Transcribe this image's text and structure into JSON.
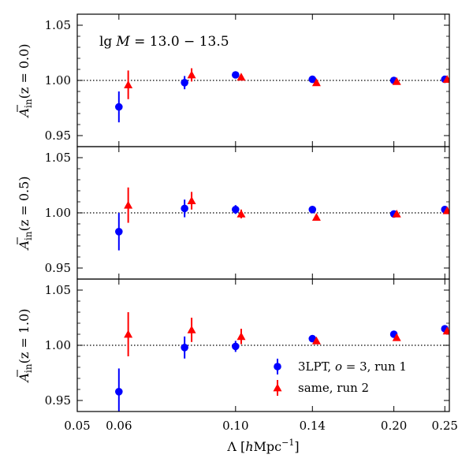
{
  "chart_data": {
    "type": "scatter",
    "layout": "three vertically stacked panels sharing the x axis",
    "xlabel_parts": {
      "symbol": "Λ",
      "unit_open": "[",
      "h": "h",
      "unit": "Mpc",
      "exp": "−1",
      "unit_close": "]"
    },
    "x_ticks": [
      0.05,
      0.06,
      0.1,
      0.14,
      0.2,
      0.25
    ],
    "x_tick_labels": [
      "0.05",
      "0.06",
      "0.10",
      "0.14",
      "0.20",
      "0.25"
    ],
    "xlim": [
      0.05,
      0.255
    ],
    "y_ticks": [
      0.95,
      1.0,
      1.05
    ],
    "y_tick_labels": [
      "0.95",
      "1.00",
      "1.05"
    ],
    "ylim": [
      0.94,
      1.06
    ],
    "reference_line": 1.0,
    "annotation_parts": {
      "lg": "lg",
      "M": "M",
      "range": " = 13.0 − 13.5"
    },
    "legend": {
      "location": "lower-right of bottom panel",
      "entries": [
        {
          "name": "3LPT, o = 3, run 1",
          "label_pre": "3LPT, ",
          "label_var": "o",
          "label_post": " = 3, run 1",
          "marker": "circle",
          "color": "#0000ff"
        },
        {
          "name": "same, run 2",
          "label_pre": "same, run 2",
          "label_var": "",
          "label_post": "",
          "marker": "triangle",
          "color": "#ff0000"
        }
      ]
    },
    "panels": [
      {
        "ylabel": {
          "hat": "A",
          "sub": "in",
          "args": "(z = 0.0)"
        },
        "series": [
          {
            "name": "3LPT, o = 3, run 1",
            "marker": "circle",
            "color": "#0000ff",
            "x": [
              0.06,
              0.08,
              0.1,
              0.14,
              0.2,
              0.25
            ],
            "y": [
              0.976,
              0.998,
              1.005,
              1.001,
              1.0,
              1.001
            ],
            "err": [
              0.014,
              0.006,
              0.003,
              0.002,
              0.0015,
              0.0015
            ]
          },
          {
            "name": "same, run 2",
            "marker": "triangle",
            "color": "#ff0000",
            "x": [
              0.0625,
              0.0825,
              0.1025,
              0.1425,
              0.2025,
              0.2525
            ],
            "y": [
              0.996,
              1.005,
              1.003,
              0.998,
              0.999,
              1.001
            ],
            "err": [
              0.013,
              0.006,
              0.002,
              0.001,
              0.001,
              0.001
            ]
          }
        ]
      },
      {
        "ylabel": {
          "hat": "A",
          "sub": "in",
          "args": "(z = 0.5)"
        },
        "series": [
          {
            "name": "3LPT, o = 3, run 1",
            "marker": "circle",
            "color": "#0000ff",
            "x": [
              0.06,
              0.08,
              0.1,
              0.14,
              0.2,
              0.25
            ],
            "y": [
              0.983,
              1.004,
              1.003,
              1.003,
              0.999,
              1.003
            ],
            "err": [
              0.017,
              0.008,
              0.004,
              0.002,
              0.0015,
              0.002
            ]
          },
          {
            "name": "same, run 2",
            "marker": "triangle",
            "color": "#ff0000",
            "x": [
              0.0625,
              0.0825,
              0.1025,
              0.1425,
              0.2025,
              0.2525
            ],
            "y": [
              1.007,
              1.011,
              0.999,
              0.996,
              0.999,
              1.002
            ],
            "err": [
              0.016,
              0.008,
              0.004,
              0.002,
              0.001,
              0.001
            ]
          }
        ]
      },
      {
        "ylabel": {
          "hat": "A",
          "sub": "in",
          "args": "(z = 1.0)"
        },
        "series": [
          {
            "name": "3LPT, o = 3, run 1",
            "marker": "circle",
            "color": "#0000ff",
            "x": [
              0.06,
              0.08,
              0.1,
              0.14,
              0.2,
              0.25
            ],
            "y": [
              0.958,
              0.998,
              0.999,
              1.006,
              1.01,
              1.015
            ],
            "err": [
              0.021,
              0.01,
              0.005,
              0.002,
              0.002,
              0.002
            ]
          },
          {
            "name": "same, run 2",
            "marker": "triangle",
            "color": "#ff0000",
            "x": [
              0.0625,
              0.0825,
              0.1025,
              0.1425,
              0.2025,
              0.2525
            ],
            "y": [
              1.01,
              1.014,
              1.008,
              1.004,
              1.007,
              1.013
            ],
            "err": [
              0.02,
              0.011,
              0.007,
              0.002,
              0.002,
              0.002
            ]
          }
        ]
      }
    ]
  }
}
